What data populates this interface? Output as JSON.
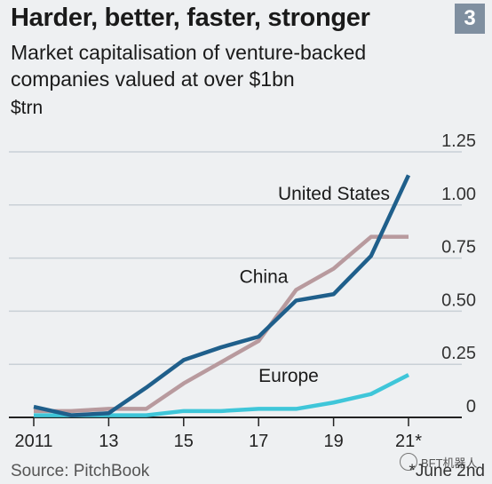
{
  "header": {
    "title": "Harder, better, faster, stronger",
    "subtitle": "Market capitalisation of venture-backed companies valued at over $1bn",
    "unit": "$trn",
    "badge": "3"
  },
  "footer": {
    "source": "Source: PitchBook",
    "footnote": "*June 2nd",
    "watermark": "BFT机器人"
  },
  "chart_data": {
    "type": "line",
    "title": "Harder, better, faster, stronger",
    "subtitle": "Market capitalisation of venture-backed companies valued at over $1bn",
    "ylabel": "$trn",
    "x": [
      2011,
      2012,
      2013,
      2014,
      2015,
      2016,
      2017,
      2018,
      2019,
      2020,
      2021
    ],
    "xticks": [
      "2011",
      "13",
      "15",
      "17",
      "19",
      "21*"
    ],
    "xtick_values": [
      2011,
      2013,
      2015,
      2017,
      2019,
      2021
    ],
    "ylim": [
      0,
      1.25
    ],
    "yticks": [
      "0",
      "0.25",
      "0.50",
      "0.75",
      "1.00",
      "1.25"
    ],
    "ytick_values": [
      0,
      0.25,
      0.5,
      0.75,
      1.0,
      1.25
    ],
    "grid": true,
    "series": [
      {
        "name": "United States",
        "color": "#1f5f8b",
        "values": [
          0.05,
          0.01,
          0.02,
          0.14,
          0.27,
          0.33,
          0.38,
          0.55,
          0.58,
          0.76,
          1.14
        ]
      },
      {
        "name": "China",
        "color": "#b89a9e",
        "values": [
          0.03,
          0.03,
          0.04,
          0.04,
          0.16,
          0.26,
          0.36,
          0.6,
          0.7,
          0.85,
          0.85
        ]
      },
      {
        "name": "Europe",
        "color": "#3fc6d9",
        "values": [
          0.01,
          0.01,
          0.01,
          0.01,
          0.03,
          0.03,
          0.04,
          0.04,
          0.07,
          0.11,
          0.2
        ]
      }
    ]
  }
}
